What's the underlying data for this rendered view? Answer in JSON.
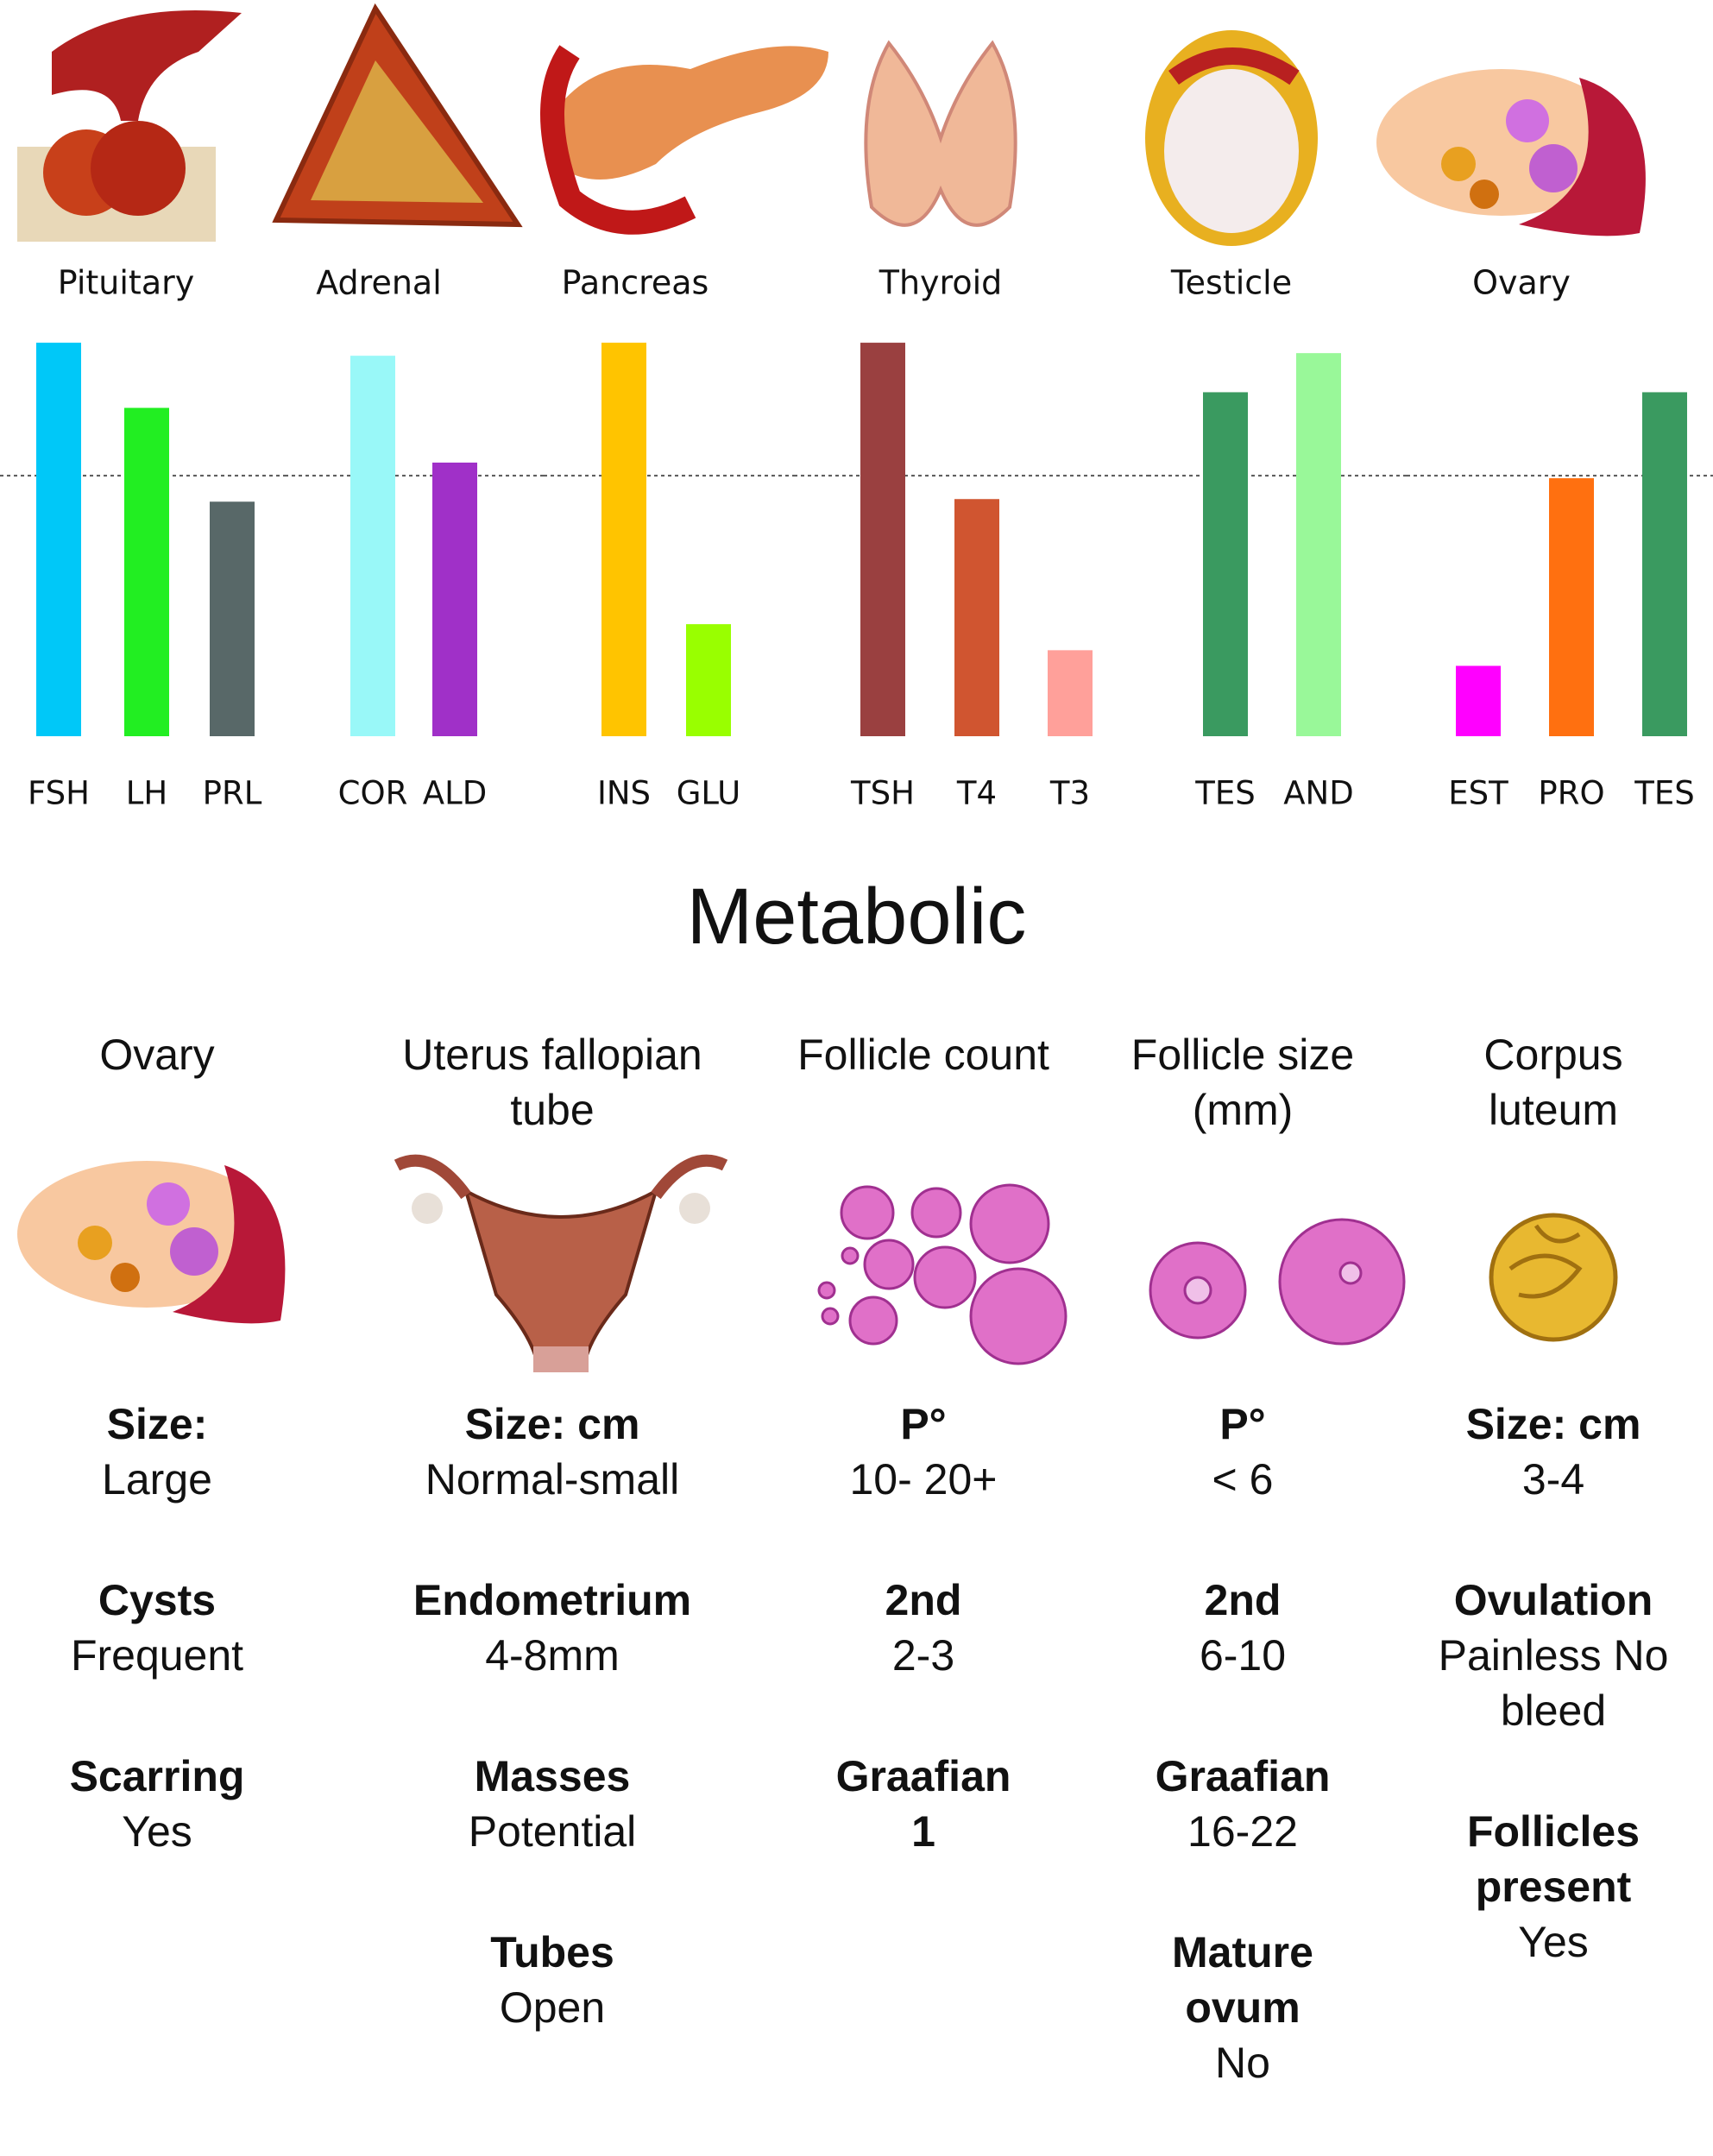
{
  "chart_data": [
    {
      "type": "bar",
      "title": "Pituitary",
      "categories": [
        "FSH",
        "LH",
        "PRL"
      ],
      "values": [
        151,
        126,
        90
      ],
      "colors": [
        "#00c8f8",
        "#22ee22",
        "#586868"
      ],
      "ylim": [
        0,
        155
      ],
      "reference": 100
    },
    {
      "type": "bar",
      "title": "Adrenal",
      "categories": [
        "COR",
        "ALD"
      ],
      "values": [
        146,
        105
      ],
      "colors": [
        "#99f8f8",
        "#a030c8"
      ],
      "ylim": [
        0,
        155
      ],
      "reference": 100
    },
    {
      "type": "bar",
      "title": "Pancreas",
      "categories": [
        "INS",
        "GLU"
      ],
      "values": [
        151,
        43
      ],
      "colors": [
        "#ffc400",
        "#99ff00"
      ],
      "ylim": [
        0,
        155
      ],
      "reference": 100
    },
    {
      "type": "bar",
      "title": "Thyroid",
      "categories": [
        "TSH",
        "T4",
        "T3"
      ],
      "values": [
        151,
        91,
        33
      ],
      "colors": [
        "#9a4040",
        "#d05530",
        "#ffa09a"
      ],
      "ylim": [
        0,
        155
      ],
      "reference": 100
    },
    {
      "type": "bar",
      "title": "Testicle",
      "categories": [
        "TES",
        "AND"
      ],
      "values": [
        132,
        147
      ],
      "colors": [
        "#3a9a60",
        "#99f899"
      ],
      "ylim": [
        0,
        155
      ],
      "reference": 100
    },
    {
      "type": "bar",
      "title": "Ovary",
      "categories": [
        "EST",
        "PRO",
        "TES"
      ],
      "values": [
        27,
        99,
        132
      ],
      "colors": [
        "#ff00ff",
        "#ff7010",
        "#3a9a60"
      ],
      "ylim": [
        0,
        155
      ],
      "reference": 100
    }
  ],
  "metabolic": {
    "title": "Metabolic",
    "columns": [
      {
        "title": "Ovary",
        "items": [
          {
            "label": "Size:",
            "value": "Large"
          },
          {
            "label": "Cysts",
            "value": "Frequent"
          },
          {
            "label": "Scarring",
            "value": "Yes"
          }
        ]
      },
      {
        "title": "Uterus fallopian tube",
        "items": [
          {
            "label": "Size: cm",
            "value": "Normal-small"
          },
          {
            "label": "Endometrium",
            "value": "4-8mm"
          },
          {
            "label": "Masses",
            "value": "Potential"
          },
          {
            "label": "Tubes",
            "value": "Open"
          }
        ]
      },
      {
        "title": "Follicle count",
        "items": [
          {
            "label": "P°",
            "value": "10- 20+"
          },
          {
            "label": "2nd",
            "value": "2-3"
          },
          {
            "label": "Graafian",
            "value": "1"
          }
        ]
      },
      {
        "title": "Follicle size (mm)",
        "items": [
          {
            "label": "P°",
            "value": "< 6"
          },
          {
            "label": "2nd",
            "value": "6-10"
          },
          {
            "label": "Graafian",
            "value": "16-22"
          },
          {
            "label": "Mature ovum",
            "value": "No"
          }
        ]
      },
      {
        "title": "Corpus luteum",
        "items": [
          {
            "label": "Size: cm",
            "value": "3-4"
          },
          {
            "label": "Ovulation",
            "value": "Painless No bleed"
          },
          {
            "label": "Follicles present",
            "value": "Yes"
          }
        ]
      }
    ]
  }
}
